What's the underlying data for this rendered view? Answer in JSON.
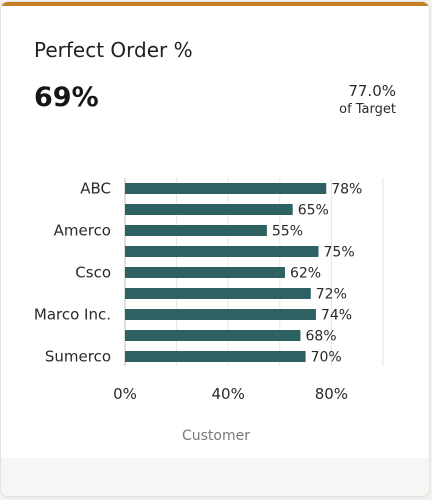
{
  "card": {
    "title": "Perfect Order %",
    "kpi_value": "69%",
    "target_value": "77.0%",
    "target_label": "of Target",
    "accent_color": "#c47e23"
  },
  "chart_data": {
    "type": "bar",
    "orientation": "horizontal",
    "categories": [
      "ABC",
      "",
      "Amerco",
      "",
      "Csco",
      "",
      "Marco Inc.",
      "",
      "Sumerco"
    ],
    "values": [
      78,
      65,
      55,
      75,
      62,
      72,
      74,
      68,
      70
    ],
    "value_labels": [
      "78%",
      "65%",
      "55%",
      "75%",
      "62%",
      "72%",
      "74%",
      "68%",
      "70%"
    ],
    "bar_color": "#2e6262",
    "xlim": [
      0,
      100
    ],
    "xticks": [
      {
        "value": 0,
        "label": "0%"
      },
      {
        "value": 40,
        "label": "40%"
      },
      {
        "value": 80,
        "label": "80%"
      }
    ],
    "gridlines": [
      0,
      20,
      40,
      60,
      80,
      100
    ],
    "xlabel": "Customer",
    "grid": true
  }
}
